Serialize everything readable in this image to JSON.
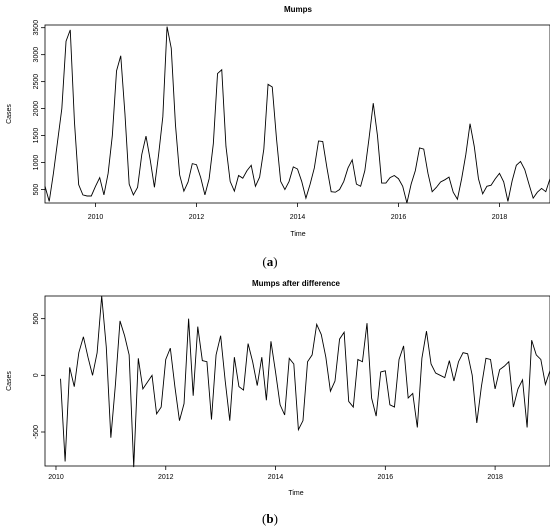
{
  "figure": {
    "panels": [
      {
        "caption_letter": "a",
        "chart_data": {
          "type": "line",
          "title": "Mumps",
          "xlabel": "Time",
          "ylabel": "Cases",
          "x_start": 2009,
          "x_step_months": 1,
          "xlim": [
            2009,
            2019
          ],
          "ylim": [
            250,
            3550
          ],
          "xticks": [
            "2010",
            "2012",
            "2014",
            "2016",
            "2018"
          ],
          "yticks": [
            "500",
            "1000",
            "1500",
            "2000",
            "2500",
            "3000",
            "3500"
          ],
          "grid": false,
          "series": [
            {
              "values": [
                560,
                280,
                800,
                1400,
                2000,
                3250,
                3460,
                1750,
                590,
                400,
                380,
                380,
                560,
                720,
                400,
                800,
                1500,
                2700,
                2980,
                1900,
                600,
                400,
                540,
                1150,
                1490,
                1050,
                540,
                1150,
                1850,
                3520,
                3120,
                1700,
                770,
                470,
                640,
                980,
                960,
                720,
                400,
                700,
                1350,
                2650,
                2720,
                1300,
                650,
                470,
                760,
                710,
                850,
                950,
                560,
                730,
                1250,
                2450,
                2400,
                1450,
                650,
                500,
                650,
                920,
                880,
                650,
                340,
                600,
                900,
                1400,
                1390,
                900,
                460,
                450,
                500,
                650,
                900,
                1050,
                600,
                560,
                850,
                1450,
                2100,
                1500,
                620,
                620,
                720,
                760,
                700,
                560,
                250,
                600,
                850,
                1270,
                1250,
                800,
                460,
                540,
                640,
                680,
                730,
                450,
                320,
                700,
                1150,
                1720,
                1300,
                700,
                420,
                560,
                580,
                700,
                800,
                640,
                280,
                660,
                950,
                1020,
                870,
                600,
                340,
                450,
                520,
                460,
                700
              ]
            }
          ]
        }
      },
      {
        "caption_letter": "b",
        "chart_data": {
          "type": "line",
          "title": "Mumps after difference",
          "xlabel": "Time",
          "ylabel": "Cases",
          "x_start": 2010.083,
          "x_step_months": 1,
          "xlim": [
            2009.8,
            2019
          ],
          "ylim": [
            -800,
            700
          ],
          "xticks": [
            "2010",
            "2012",
            "2014",
            "2016",
            "2018"
          ],
          "yticks": [
            "-500",
            "0",
            "500"
          ],
          "grid": false,
          "series": [
            {
              "values": [
                -30,
                -760,
                70,
                -100,
                200,
                340,
                160,
                0,
                200,
                700,
                250,
                -550,
                -80,
                480,
                350,
                180,
                -810,
                150,
                -120,
                -60,
                0,
                -340,
                -280,
                140,
                240,
                -100,
                -400,
                -250,
                500,
                -180,
                430,
                130,
                120,
                -390,
                180,
                350,
                -50,
                -400,
                160,
                -100,
                -130,
                280,
                120,
                -90,
                160,
                -220,
                300,
                30,
                -260,
                -350,
                150,
                100,
                -480,
                -400,
                120,
                180,
                450,
                360,
                160,
                -140,
                -50,
                320,
                380,
                -230,
                -280,
                140,
                120,
                460,
                -200,
                -360,
                30,
                40,
                -260,
                -280,
                140,
                260,
                -200,
                -160,
                -460,
                150,
                390,
                100,
                20,
                0,
                -20,
                130,
                -50,
                120,
                200,
                190,
                0,
                -420,
                -100,
                150,
                140,
                -120,
                50,
                80,
                120,
                -280,
                -120,
                -40,
                -460,
                310,
                180,
                140,
                -80,
                40,
                60,
                0,
                20
              ]
            }
          ]
        }
      }
    ]
  }
}
